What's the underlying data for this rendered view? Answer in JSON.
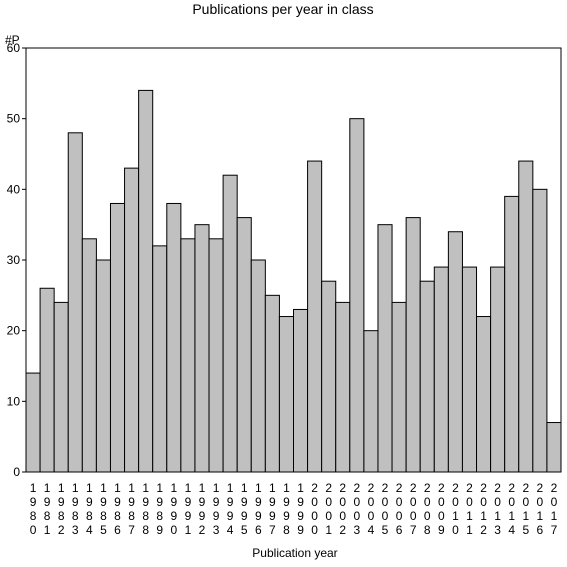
{
  "chart_data": {
    "type": "bar",
    "title": "Publications per year in class",
    "xlabel": "Publication year",
    "ylabel": "#P",
    "ylim": [
      0,
      60
    ],
    "yticks": [
      0,
      10,
      20,
      30,
      40,
      50,
      60
    ],
    "grid": false,
    "categories": [
      "1980",
      "1981",
      "1982",
      "1983",
      "1984",
      "1985",
      "1986",
      "1987",
      "1988",
      "1989",
      "1990",
      "1991",
      "1992",
      "1993",
      "1994",
      "1995",
      "1996",
      "1997",
      "1998",
      "1999",
      "2000",
      "2001",
      "2002",
      "2003",
      "2004",
      "2005",
      "2006",
      "2007",
      "2008",
      "2009",
      "2010",
      "2011",
      "2012",
      "2013",
      "2014",
      "2015",
      "2016",
      "2017"
    ],
    "values": [
      14,
      26,
      24,
      48,
      33,
      30,
      38,
      43,
      54,
      32,
      38,
      33,
      35,
      33,
      42,
      36,
      30,
      25,
      22,
      23,
      44,
      27,
      24,
      50,
      20,
      35,
      24,
      36,
      27,
      29,
      34,
      29,
      22,
      29,
      39,
      44,
      40,
      7
    ],
    "colors": {
      "bar_fill": "#c0c0c0",
      "bar_stroke": "#000000",
      "axis": "#000000",
      "background": "#ffffff"
    }
  }
}
